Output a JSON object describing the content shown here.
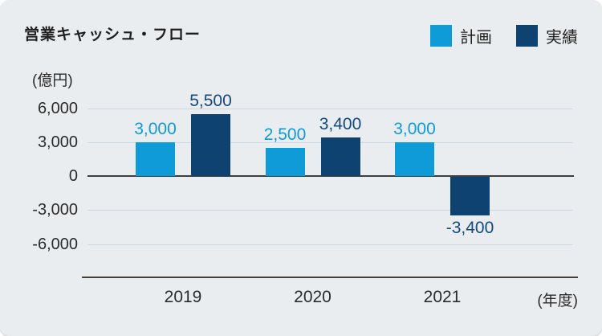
{
  "header": {
    "title": "営業キャッシュ・フロー",
    "unit_label": "(億円)",
    "x_axis_label": "(年度)"
  },
  "legend": {
    "items": [
      {
        "label": "計画",
        "color": "#0f9ad8"
      },
      {
        "label": "実績",
        "color": "#0d4271"
      }
    ]
  },
  "chart_data": {
    "type": "bar",
    "title": "営業キャッシュ・フロー",
    "unit_label": "(億円)",
    "x_axis_label": "(年度)",
    "categories": [
      "2019",
      "2020",
      "2021"
    ],
    "series": [
      {
        "name": "計画",
        "color": "#0f9ad8",
        "label_color": "#0f9ad8",
        "values": [
          3000,
          2500,
          3000
        ]
      },
      {
        "name": "実績",
        "color": "#0d4271",
        "label_color": "#14497e",
        "values": [
          5500,
          3400,
          -3400
        ]
      }
    ],
    "y_ticks": [
      6000,
      3000,
      0,
      -3000,
      -6000
    ],
    "ylim": [
      -6000,
      6000
    ],
    "grid": true,
    "legend_position": "top-right",
    "colors": {
      "background": "#eaedf0",
      "gridline": "#ccd8e3",
      "zero_line": "#3e3e3e",
      "axis_line": "#454038",
      "text": "#2b2b2b"
    }
  }
}
